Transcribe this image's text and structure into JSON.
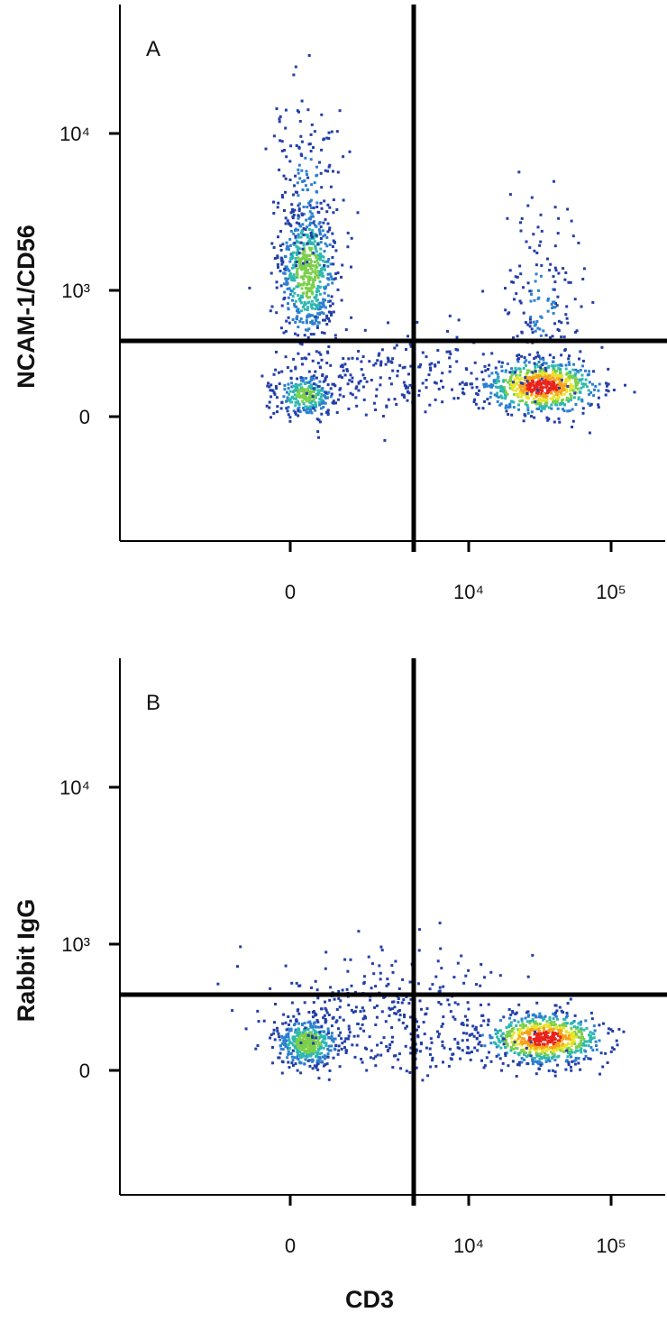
{
  "panels": [
    {
      "label": "A",
      "y_axis_label": "NCAM-1/CD56",
      "xticks": [
        0,
        {
          "value": 10000,
          "label": "10⁴"
        },
        {
          "value": 100000,
          "label": "10⁵"
        }
      ],
      "yticks": [
        0,
        {
          "value": 1000,
          "label": "10³"
        },
        {
          "value": 10000,
          "label": "10⁴"
        }
      ]
    },
    {
      "label": "B",
      "y_axis_label": "Rabbit IgG",
      "xticks": [
        0,
        {
          "value": 10000,
          "label": "10⁴"
        },
        {
          "value": 100000,
          "label": "10⁵"
        }
      ],
      "yticks": [
        0,
        {
          "value": 1000,
          "label": "10³"
        },
        {
          "value": 10000,
          "label": "10⁴"
        }
      ]
    }
  ],
  "x_axis_label": "CD3"
}
